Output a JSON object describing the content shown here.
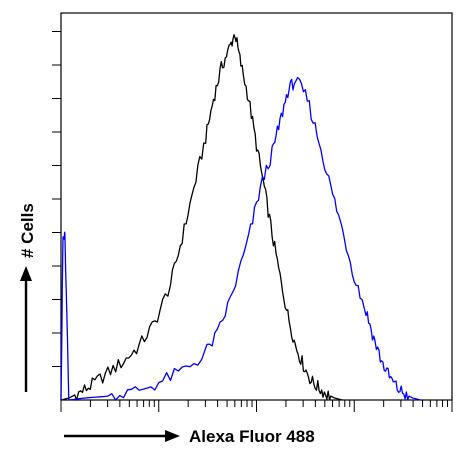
{
  "chart_data": {
    "type": "line",
    "title": "",
    "xlabel": "Alexa Fluor 488",
    "ylabel": "# Cells",
    "x_scale": "log",
    "xlim": [
      0,
      1
    ],
    "ylim": [
      0,
      1
    ],
    "grid": false,
    "legend": "none",
    "series": [
      {
        "color": "#000000",
        "x": [
          0.0,
          0.02,
          0.05,
          0.08,
          0.12,
          0.16,
          0.2,
          0.24,
          0.28,
          0.31,
          0.34,
          0.37,
          0.39,
          0.41,
          0.43,
          0.445,
          0.46,
          0.48,
          0.5,
          0.52,
          0.54,
          0.56,
          0.58,
          0.6,
          0.62,
          0.64,
          0.66,
          0.68,
          0.7,
          0.72
        ],
        "y": [
          0.0,
          0.005,
          0.02,
          0.04,
          0.07,
          0.1,
          0.14,
          0.2,
          0.3,
          0.42,
          0.55,
          0.68,
          0.78,
          0.86,
          0.91,
          0.95,
          0.87,
          0.78,
          0.66,
          0.55,
          0.43,
          0.32,
          0.22,
          0.14,
          0.09,
          0.05,
          0.03,
          0.015,
          0.005,
          0.0
        ]
      },
      {
        "color": "#0000ff",
        "x": [
          0.0,
          0.005,
          0.01,
          0.02,
          0.06,
          0.12,
          0.18,
          0.24,
          0.3,
          0.36,
          0.4,
          0.44,
          0.48,
          0.51,
          0.54,
          0.56,
          0.58,
          0.6,
          0.63,
          0.66,
          0.69,
          0.72,
          0.75,
          0.78,
          0.8,
          0.82,
          0.84,
          0.86,
          0.88,
          0.9,
          0.92
        ],
        "y": [
          0.0,
          0.42,
          0.42,
          0.0,
          0.005,
          0.01,
          0.02,
          0.04,
          0.07,
          0.11,
          0.17,
          0.28,
          0.42,
          0.55,
          0.64,
          0.72,
          0.8,
          0.83,
          0.78,
          0.67,
          0.55,
          0.44,
          0.32,
          0.23,
          0.16,
          0.1,
          0.06,
          0.03,
          0.015,
          0.005,
          0.0
        ]
      }
    ]
  }
}
